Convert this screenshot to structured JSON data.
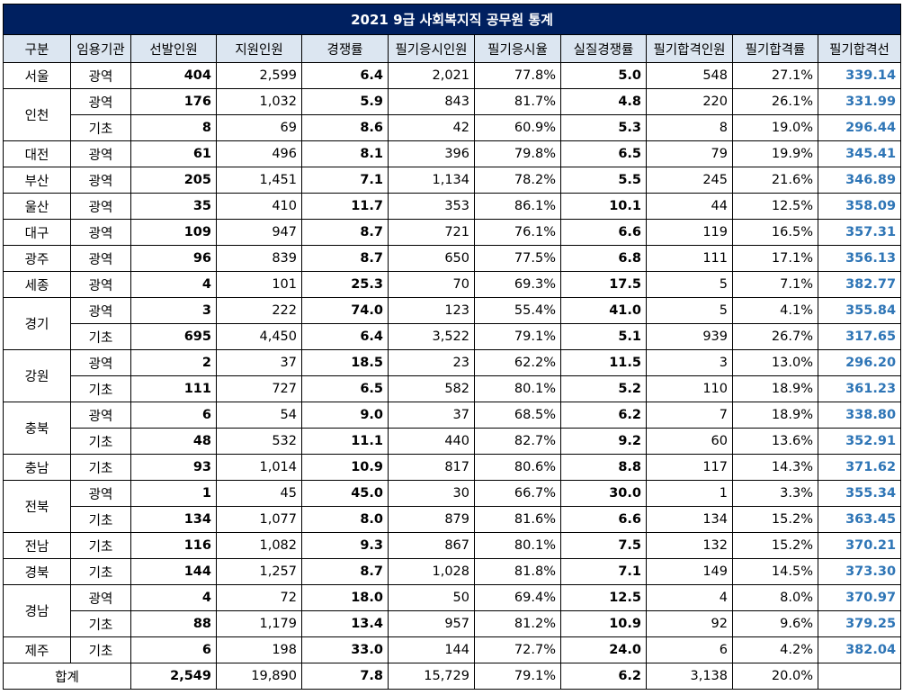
{
  "title": "2021 9급 사회복지직 공무원 통계",
  "headers": [
    "구분",
    "임용기관",
    "선발인원",
    "지원인원",
    "경쟁률",
    "필기응시인원",
    "필기응시율",
    "실질경쟁률",
    "필기합격인원",
    "필기합격률",
    "필기합격선"
  ],
  "groups": [
    {
      "region": "서울",
      "rows": [
        {
          "agency": "광역",
          "selected": "404",
          "applicants": "2,599",
          "ratio": "6.4",
          "exam_takers": "2,021",
          "exam_rate": "77.8%",
          "real_ratio": "5.0",
          "passed": "548",
          "pass_rate": "27.1%",
          "cutoff": "339.14"
        }
      ]
    },
    {
      "region": "인천",
      "rows": [
        {
          "agency": "광역",
          "selected": "176",
          "applicants": "1,032",
          "ratio": "5.9",
          "exam_takers": "843",
          "exam_rate": "81.7%",
          "real_ratio": "4.8",
          "passed": "220",
          "pass_rate": "26.1%",
          "cutoff": "331.99"
        },
        {
          "agency": "기초",
          "selected": "8",
          "applicants": "69",
          "ratio": "8.6",
          "exam_takers": "42",
          "exam_rate": "60.9%",
          "real_ratio": "5.3",
          "passed": "8",
          "pass_rate": "19.0%",
          "cutoff": "296.44"
        }
      ]
    },
    {
      "region": "대전",
      "rows": [
        {
          "agency": "광역",
          "selected": "61",
          "applicants": "496",
          "ratio": "8.1",
          "exam_takers": "396",
          "exam_rate": "79.8%",
          "real_ratio": "6.5",
          "passed": "79",
          "pass_rate": "19.9%",
          "cutoff": "345.41"
        }
      ]
    },
    {
      "region": "부산",
      "rows": [
        {
          "agency": "광역",
          "selected": "205",
          "applicants": "1,451",
          "ratio": "7.1",
          "exam_takers": "1,134",
          "exam_rate": "78.2%",
          "real_ratio": "5.5",
          "passed": "245",
          "pass_rate": "21.6%",
          "cutoff": "346.89"
        }
      ]
    },
    {
      "region": "울산",
      "rows": [
        {
          "agency": "광역",
          "selected": "35",
          "applicants": "410",
          "ratio": "11.7",
          "exam_takers": "353",
          "exam_rate": "86.1%",
          "real_ratio": "10.1",
          "passed": "44",
          "pass_rate": "12.5%",
          "cutoff": "358.09"
        }
      ]
    },
    {
      "region": "대구",
      "rows": [
        {
          "agency": "광역",
          "selected": "109",
          "applicants": "947",
          "ratio": "8.7",
          "exam_takers": "721",
          "exam_rate": "76.1%",
          "real_ratio": "6.6",
          "passed": "119",
          "pass_rate": "16.5%",
          "cutoff": "357.31"
        }
      ]
    },
    {
      "region": "광주",
      "rows": [
        {
          "agency": "광역",
          "selected": "96",
          "applicants": "839",
          "ratio": "8.7",
          "exam_takers": "650",
          "exam_rate": "77.5%",
          "real_ratio": "6.8",
          "passed": "111",
          "pass_rate": "17.1%",
          "cutoff": "356.13"
        }
      ]
    },
    {
      "region": "세종",
      "rows": [
        {
          "agency": "광역",
          "selected": "4",
          "applicants": "101",
          "ratio": "25.3",
          "exam_takers": "70",
          "exam_rate": "69.3%",
          "real_ratio": "17.5",
          "passed": "5",
          "pass_rate": "7.1%",
          "cutoff": "382.77"
        }
      ]
    },
    {
      "region": "경기",
      "rows": [
        {
          "agency": "광역",
          "selected": "3",
          "applicants": "222",
          "ratio": "74.0",
          "exam_takers": "123",
          "exam_rate": "55.4%",
          "real_ratio": "41.0",
          "passed": "5",
          "pass_rate": "4.1%",
          "cutoff": "355.84"
        },
        {
          "agency": "기초",
          "selected": "695",
          "applicants": "4,450",
          "ratio": "6.4",
          "exam_takers": "3,522",
          "exam_rate": "79.1%",
          "real_ratio": "5.1",
          "passed": "939",
          "pass_rate": "26.7%",
          "cutoff": "317.65"
        }
      ]
    },
    {
      "region": "강원",
      "rows": [
        {
          "agency": "광역",
          "selected": "2",
          "applicants": "37",
          "ratio": "18.5",
          "exam_takers": "23",
          "exam_rate": "62.2%",
          "real_ratio": "11.5",
          "passed": "3",
          "pass_rate": "13.0%",
          "cutoff": "296.20"
        },
        {
          "agency": "기초",
          "selected": "111",
          "applicants": "727",
          "ratio": "6.5",
          "exam_takers": "582",
          "exam_rate": "80.1%",
          "real_ratio": "5.2",
          "passed": "110",
          "pass_rate": "18.9%",
          "cutoff": "361.23"
        }
      ]
    },
    {
      "region": "충북",
      "rows": [
        {
          "agency": "광역",
          "selected": "6",
          "applicants": "54",
          "ratio": "9.0",
          "exam_takers": "37",
          "exam_rate": "68.5%",
          "real_ratio": "6.2",
          "passed": "7",
          "pass_rate": "18.9%",
          "cutoff": "338.80"
        },
        {
          "agency": "기초",
          "selected": "48",
          "applicants": "532",
          "ratio": "11.1",
          "exam_takers": "440",
          "exam_rate": "82.7%",
          "real_ratio": "9.2",
          "passed": "60",
          "pass_rate": "13.6%",
          "cutoff": "352.91"
        }
      ]
    },
    {
      "region": "충남",
      "rows": [
        {
          "agency": "기초",
          "selected": "93",
          "applicants": "1,014",
          "ratio": "10.9",
          "exam_takers": "817",
          "exam_rate": "80.6%",
          "real_ratio": "8.8",
          "passed": "117",
          "pass_rate": "14.3%",
          "cutoff": "371.62"
        }
      ]
    },
    {
      "region": "전북",
      "rows": [
        {
          "agency": "광역",
          "selected": "1",
          "applicants": "45",
          "ratio": "45.0",
          "exam_takers": "30",
          "exam_rate": "66.7%",
          "real_ratio": "30.0",
          "passed": "1",
          "pass_rate": "3.3%",
          "cutoff": "355.34"
        },
        {
          "agency": "기초",
          "selected": "134",
          "applicants": "1,077",
          "ratio": "8.0",
          "exam_takers": "879",
          "exam_rate": "81.6%",
          "real_ratio": "6.6",
          "passed": "134",
          "pass_rate": "15.2%",
          "cutoff": "363.45"
        }
      ]
    },
    {
      "region": "전남",
      "rows": [
        {
          "agency": "기초",
          "selected": "116",
          "applicants": "1,082",
          "ratio": "9.3",
          "exam_takers": "867",
          "exam_rate": "80.1%",
          "real_ratio": "7.5",
          "passed": "132",
          "pass_rate": "15.2%",
          "cutoff": "370.21"
        }
      ]
    },
    {
      "region": "경북",
      "rows": [
        {
          "agency": "기초",
          "selected": "144",
          "applicants": "1,257",
          "ratio": "8.7",
          "exam_takers": "1,028",
          "exam_rate": "81.8%",
          "real_ratio": "7.1",
          "passed": "149",
          "pass_rate": "14.5%",
          "cutoff": "373.30"
        }
      ]
    },
    {
      "region": "경남",
      "rows": [
        {
          "agency": "광역",
          "selected": "4",
          "applicants": "72",
          "ratio": "18.0",
          "exam_takers": "50",
          "exam_rate": "69.4%",
          "real_ratio": "12.5",
          "passed": "4",
          "pass_rate": "8.0%",
          "cutoff": "370.97"
        },
        {
          "agency": "기초",
          "selected": "88",
          "applicants": "1,179",
          "ratio": "13.4",
          "exam_takers": "957",
          "exam_rate": "81.2%",
          "real_ratio": "10.9",
          "passed": "92",
          "pass_rate": "9.6%",
          "cutoff": "379.25"
        }
      ]
    },
    {
      "region": "제주",
      "rows": [
        {
          "agency": "기초",
          "selected": "6",
          "applicants": "198",
          "ratio": "33.0",
          "exam_takers": "144",
          "exam_rate": "72.7%",
          "real_ratio": "24.0",
          "passed": "6",
          "pass_rate": "4.2%",
          "cutoff": "382.04"
        }
      ]
    }
  ],
  "total": {
    "label": "합계",
    "selected": "2,549",
    "applicants": "19,890",
    "ratio": "7.8",
    "exam_takers": "15,729",
    "exam_rate": "79.1%",
    "real_ratio": "6.2",
    "passed": "3,138",
    "pass_rate": "20.0%",
    "cutoff": ""
  }
}
